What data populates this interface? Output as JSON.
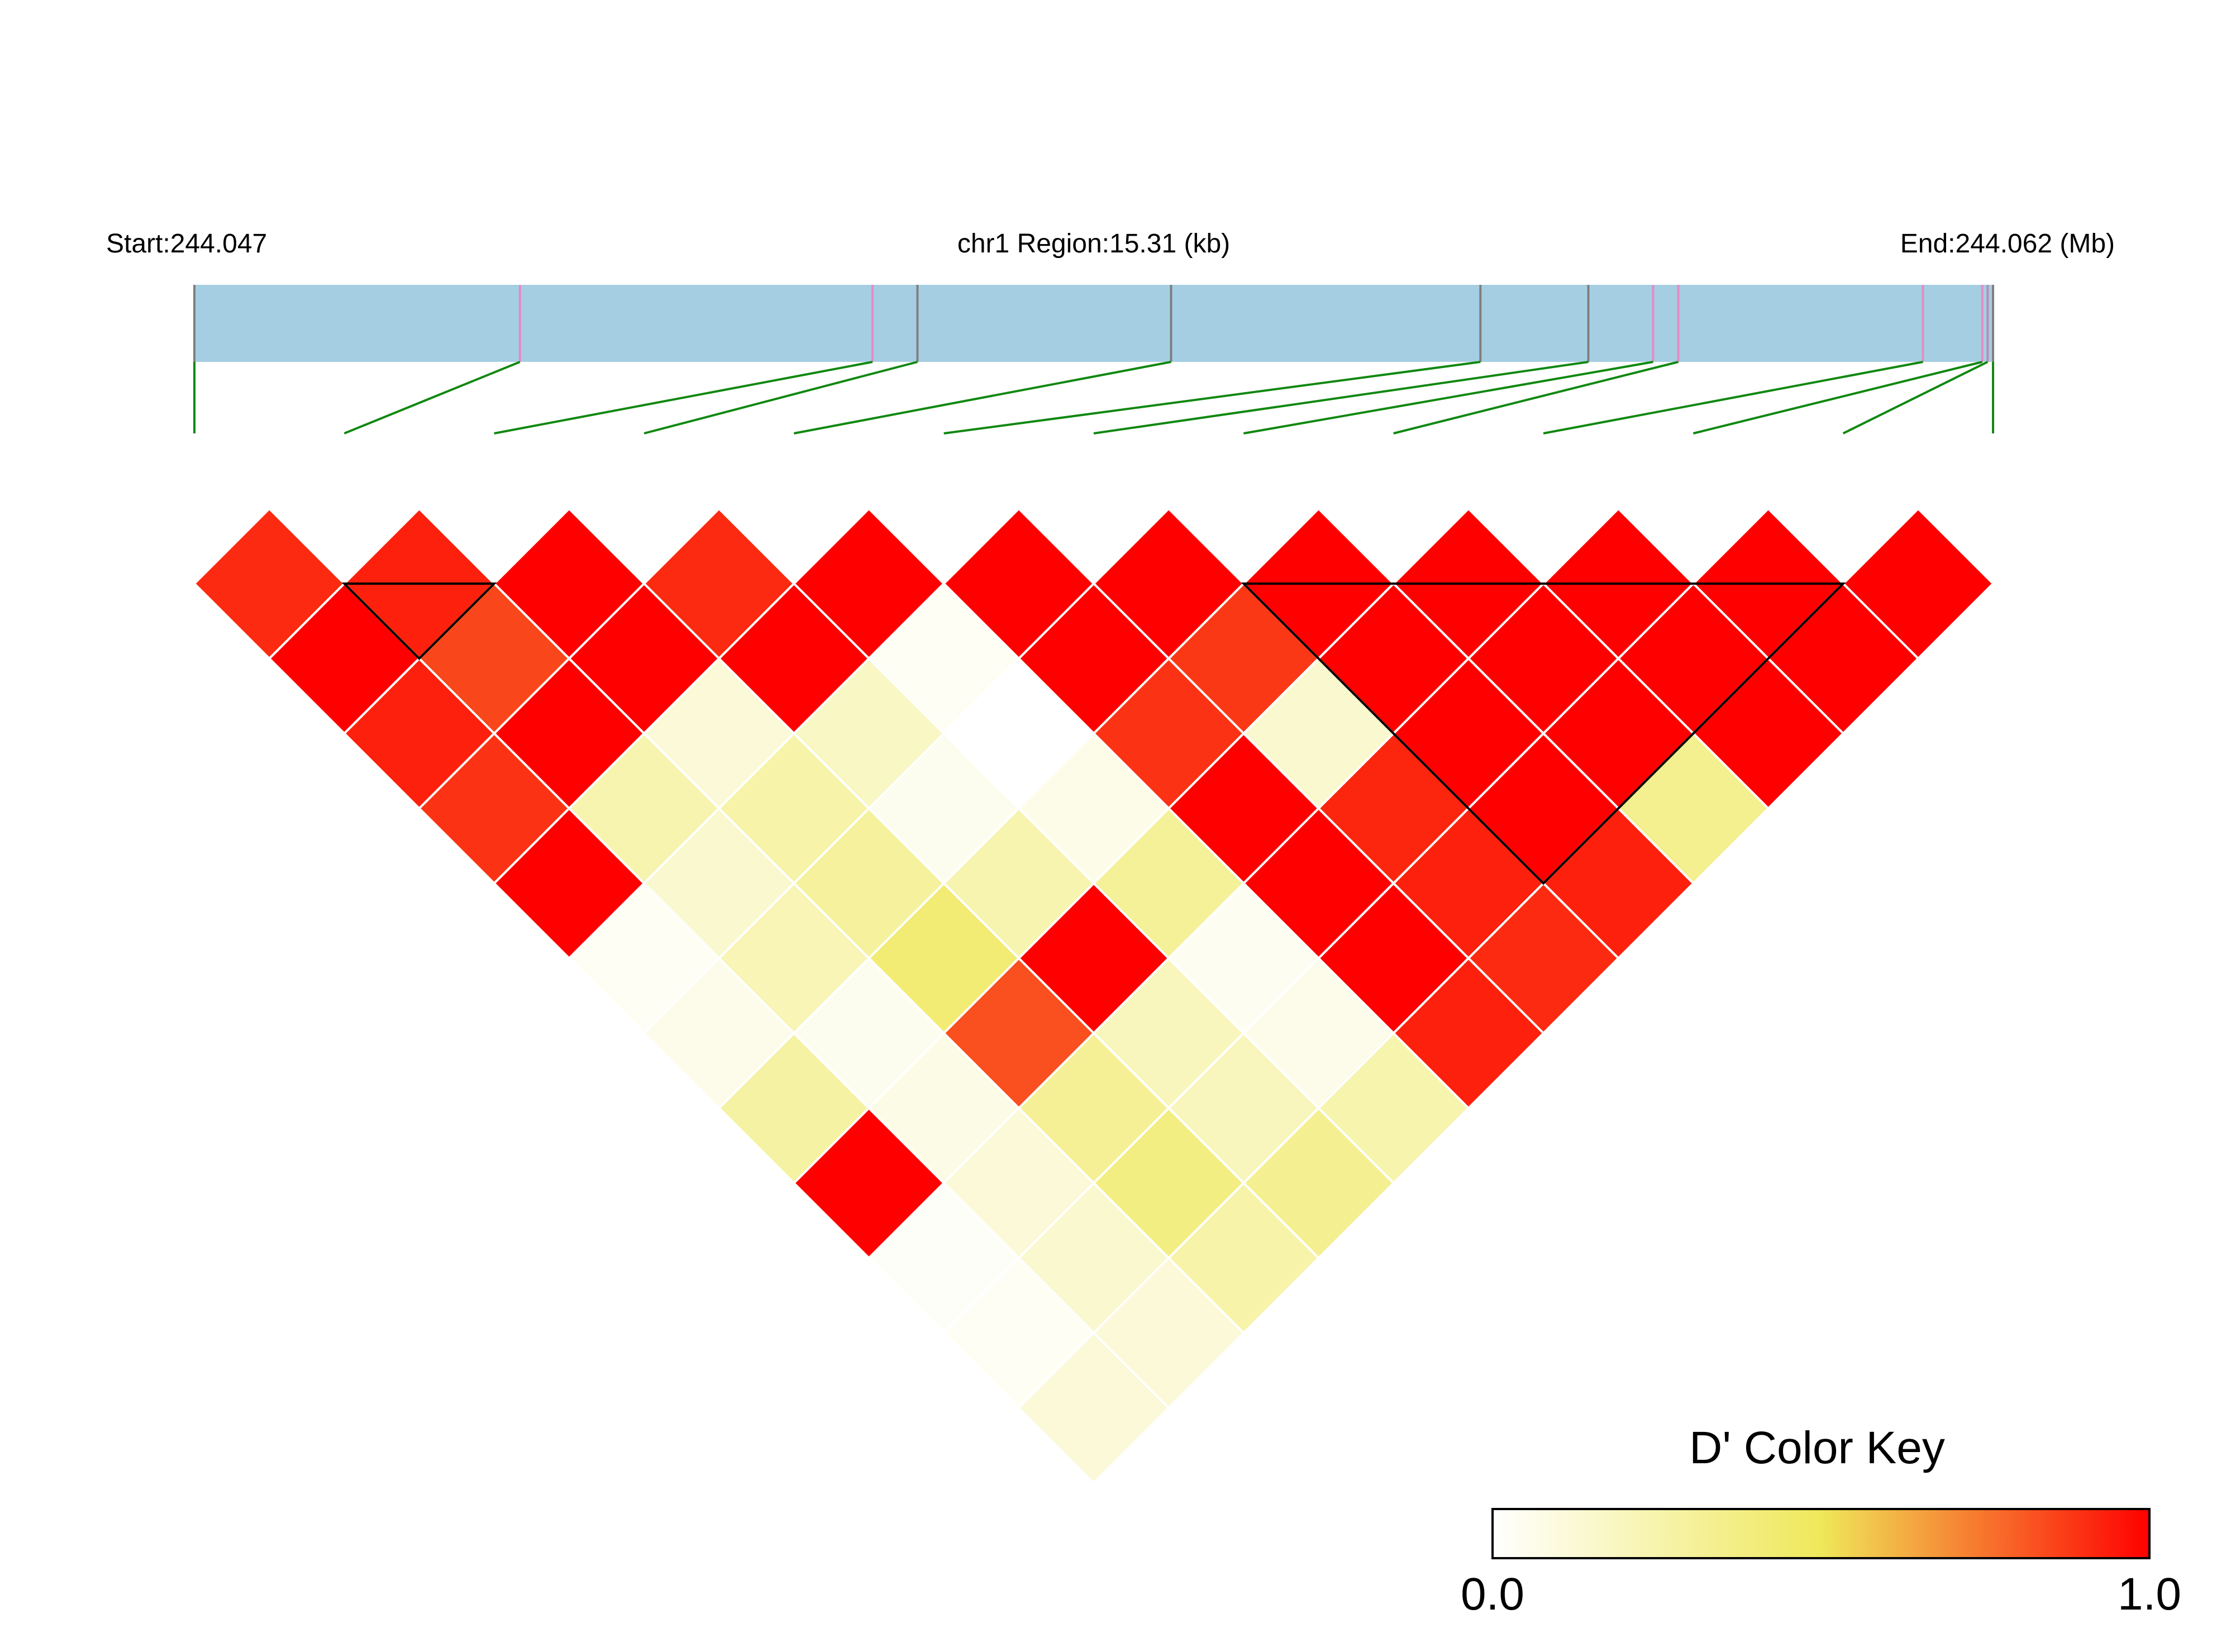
{
  "chart_data": {
    "type": "heatmap",
    "subtype": "ld-triangle",
    "header": {
      "start_label": "Start:244.047",
      "region_label": "chr1 Region:15.31 (kb)",
      "end_label": "End:244.062 (Mb)"
    },
    "region": {
      "chrom": "chr1",
      "start_mb": 244.047,
      "end_mb": 244.062,
      "length_kb": 15.31
    },
    "snp_count": 13,
    "snp_positions_fraction": [
      0.0,
      0.181,
      0.377,
      0.402,
      0.543,
      0.715,
      0.775,
      0.811,
      0.825,
      0.961,
      0.994,
      0.997,
      1.0
    ],
    "snp_tick_colors": [
      "#7f7f7f",
      "#e58bc4",
      "#e58bc4",
      "#7f7f7f",
      "#7f7f7f",
      "#7f7f7f",
      "#7f7f7f",
      "#e58bc4",
      "#e58bc4",
      "#e58bc4",
      "#e58bc4",
      "#b58fb8",
      "#7f7f7f"
    ],
    "colors": {
      "track_fill": "#a6cee3",
      "connector": "#118811",
      "cell_border": "#ffffff",
      "block_outline": "#000000"
    },
    "dprime_rows": [
      [
        0.91,
        0.93,
        1.0,
        0.91,
        1.0,
        1.0,
        1.0,
        1.0,
        1.0,
        1.0,
        1.0,
        1.0
      ],
      [
        1.0,
        0.85,
        1.0,
        1.0,
        0.03,
        1.0,
        0.88,
        1.0,
        1.0,
        1.0,
        1.0
      ],
      [
        0.93,
        1.0,
        0.12,
        0.18,
        0.0,
        0.89,
        0.15,
        1.0,
        1.0,
        1.0
      ],
      [
        0.89,
        0.24,
        0.26,
        0.05,
        0.07,
        1.0,
        0.92,
        1.0,
        0.34
      ],
      [
        1.0,
        0.15,
        0.3,
        0.24,
        0.31,
        1.0,
        0.93,
        0.93
      ],
      [
        0.03,
        0.22,
        0.42,
        1.0,
        0.04,
        1.0,
        0.91
      ],
      [
        0.06,
        0.05,
        0.83,
        0.2,
        0.06,
        0.93
      ],
      [
        0.28,
        0.08,
        0.32,
        0.2,
        0.25
      ],
      [
        1.0,
        0.12,
        0.38,
        0.33
      ],
      [
        0.02,
        0.15,
        0.26
      ],
      [
        0.03,
        0.12
      ],
      [
        0.12
      ]
    ],
    "ld_blocks": [
      {
        "from_snp": 2,
        "to_snp": 3
      },
      {
        "from_snp": 8,
        "to_snp": 12
      }
    ],
    "color_key": {
      "title": "D' Color Key",
      "min_label": "0.0",
      "max_label": "1.0",
      "min": 0.0,
      "max": 1.0,
      "stops": [
        "#ffffff",
        "#efe85a",
        "#ff0000"
      ],
      "placement": "bottom-right"
    }
  }
}
